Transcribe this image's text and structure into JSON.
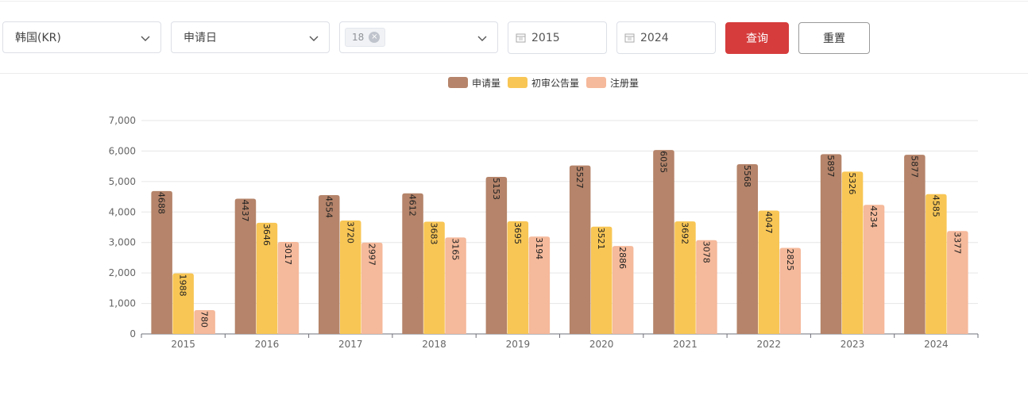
{
  "filters": {
    "country": "韩国(KR)",
    "date_type": "申请日",
    "class_tag": "18",
    "start_year": "2015",
    "end_year": "2024",
    "query_label": "查询",
    "reset_label": "重置"
  },
  "colors": {
    "series_1": "#b5846a",
    "series_2": "#f8c655",
    "series_3": "#f5b99b",
    "primary": "#d63c3c"
  },
  "chart_data": {
    "type": "bar",
    "title": "",
    "xlabel": "",
    "ylabel": "",
    "categories": [
      "2015",
      "2016",
      "2017",
      "2018",
      "2019",
      "2020",
      "2021",
      "2022",
      "2023",
      "2024"
    ],
    "series": [
      {
        "name": "申请量",
        "values": [
          4688,
          4437,
          4554,
          4612,
          5153,
          5527,
          6035,
          5568,
          5897,
          5877
        ]
      },
      {
        "name": "初审公告量",
        "values": [
          1988,
          3646,
          3720,
          3683,
          3695,
          3521,
          3692,
          4047,
          5326,
          4585
        ]
      },
      {
        "name": "注册量",
        "values": [
          780,
          3017,
          2997,
          3165,
          3194,
          2886,
          3078,
          2825,
          4234,
          3377
        ]
      }
    ],
    "ylim": [
      0,
      7000
    ],
    "yticks": [
      "0",
      "1,000",
      "2,000",
      "3,000",
      "4,000",
      "5,000",
      "6,000",
      "7,000"
    ],
    "grid": true,
    "legend_position": "top-center"
  }
}
